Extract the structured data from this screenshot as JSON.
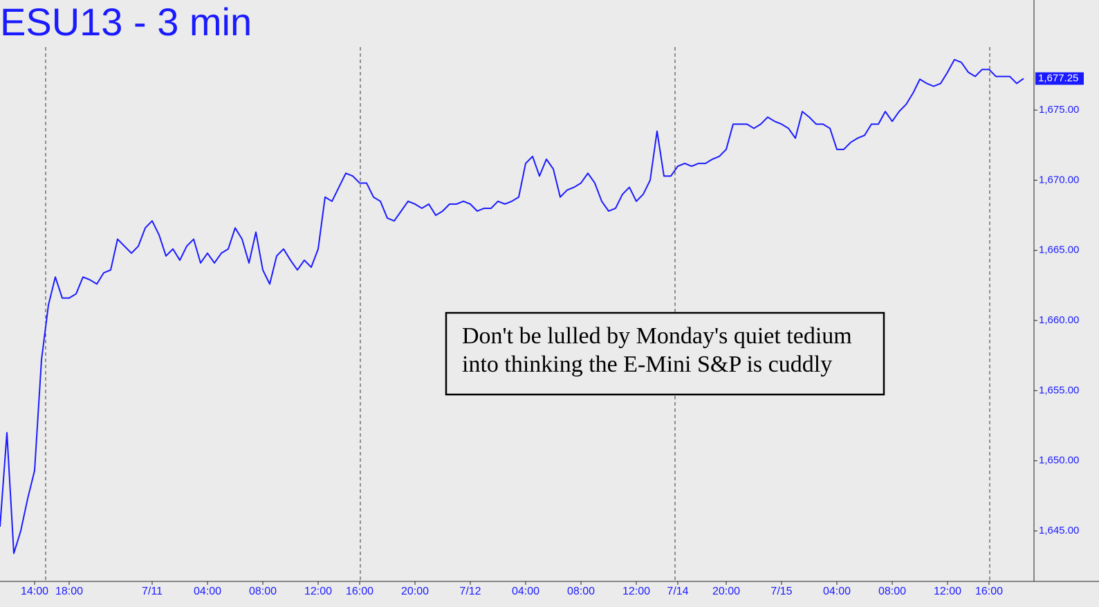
{
  "chart_data": {
    "type": "line",
    "title": "ESU13 - 3 min",
    "annotation": [
      "Don't be lulled by Monday's quiet tedium",
      "into thinking the E-Mini S&P is cuddly"
    ],
    "last_price": {
      "value": 1677.25,
      "label": "1,677.25"
    },
    "color": "#1a1aff",
    "ylim": [
      1641.4,
      1682.85
    ],
    "yticks": [
      {
        "value": 1645,
        "label": "1,645.00"
      },
      {
        "value": 1650,
        "label": "1,650.00"
      },
      {
        "value": 1655,
        "label": "1,655.00"
      },
      {
        "value": 1660,
        "label": "1,660.00"
      },
      {
        "value": 1665,
        "label": "1,665.00"
      },
      {
        "value": 1670,
        "label": "1,670.00"
      },
      {
        "value": 1675,
        "label": "1,675.00"
      }
    ],
    "categories": [
      null,
      null,
      null,
      null,
      null,
      "14:00",
      null,
      null,
      null,
      null,
      "18:00",
      null,
      null,
      null,
      null,
      null,
      null,
      null,
      null,
      null,
      null,
      null,
      "7/11",
      null,
      null,
      null,
      null,
      null,
      null,
      null,
      "04:00",
      null,
      null,
      null,
      null,
      null,
      null,
      null,
      "08:00",
      null,
      null,
      null,
      null,
      null,
      null,
      null,
      "12:00",
      null,
      null,
      null,
      null,
      null,
      "16:00",
      null,
      null,
      null,
      null,
      null,
      null,
      null,
      "20:00",
      null,
      null,
      null,
      null,
      null,
      null,
      null,
      "7/12",
      null,
      null,
      null,
      null,
      null,
      null,
      null,
      "04:00",
      null,
      null,
      null,
      null,
      null,
      null,
      null,
      "08:00",
      null,
      null,
      null,
      null,
      null,
      null,
      null,
      "12:00",
      null,
      null,
      null,
      null,
      null,
      "7/14",
      null,
      null,
      null,
      null,
      null,
      null,
      "20:00",
      null,
      null,
      null,
      null,
      null,
      null,
      null,
      "7/15",
      null,
      null,
      null,
      null,
      null,
      null,
      null,
      "04:00",
      null,
      null,
      null,
      null,
      null,
      null,
      null,
      "08:00",
      null,
      null,
      null,
      null,
      null,
      null,
      null,
      "12:00",
      null,
      null,
      null,
      null,
      null,
      "16:00",
      null,
      null,
      null,
      null,
      null
    ],
    "values": [
      1645.3,
      1652,
      1643.4,
      1645,
      1647.3,
      1649.3,
      1657.2,
      1661.1,
      1663.1,
      1661.6,
      1661.6,
      1661.9,
      1663.1,
      1662.9,
      1662.6,
      1663.4,
      1663.6,
      1665.8,
      1665.3,
      1664.8,
      1665.3,
      1666.6,
      1667.1,
      1666.1,
      1664.6,
      1665.1,
      1664.3,
      1665.3,
      1665.8,
      1664.1,
      1664.8,
      1664.1,
      1664.8,
      1665.1,
      1666.6,
      1665.8,
      1664.1,
      1666.3,
      1663.6,
      1662.6,
      1664.6,
      1665.1,
      1664.3,
      1663.6,
      1664.3,
      1663.8,
      1665.1,
      1668.8,
      1668.5,
      1669.5,
      1670.5,
      1670.3,
      1669.8,
      1669.8,
      1668.8,
      1668.5,
      1667.3,
      1667.1,
      1667.8,
      1668.5,
      1668.3,
      1668,
      1668.3,
      1667.5,
      1667.8,
      1668.3,
      1668.3,
      1668.5,
      1668.3,
      1667.8,
      1668,
      1668,
      1668.5,
      1668.3,
      1668.5,
      1668.8,
      1671.2,
      1671.7,
      1670.3,
      1671.5,
      1670.8,
      1668.8,
      1669.3,
      1669.5,
      1669.8,
      1670.5,
      1669.8,
      1668.5,
      1667.8,
      1668,
      1669,
      1669.5,
      1668.5,
      1669,
      1670,
      1673.5,
      1670.3,
      1670.3,
      1671,
      1671.2,
      1671,
      1671.2,
      1671.2,
      1671.5,
      1671.7,
      1672.2,
      1674,
      1674,
      1674,
      1673.7,
      1674,
      1674.5,
      1674.2,
      1674,
      1673.7,
      1673,
      1674.9,
      1674.5,
      1674,
      1674,
      1673.7,
      1672.2,
      1672.2,
      1672.7,
      1673,
      1673.2,
      1674,
      1674,
      1674.9,
      1674.2,
      1674.9,
      1675.4,
      1676.2,
      1677.2,
      1676.9,
      1676.7,
      1676.9,
      1677.7,
      1678.6,
      1678.4,
      1677.7,
      1677.4,
      1677.9,
      1677.9,
      1677.4,
      1677.4,
      1677.4,
      1676.9,
      1677.25
    ]
  }
}
